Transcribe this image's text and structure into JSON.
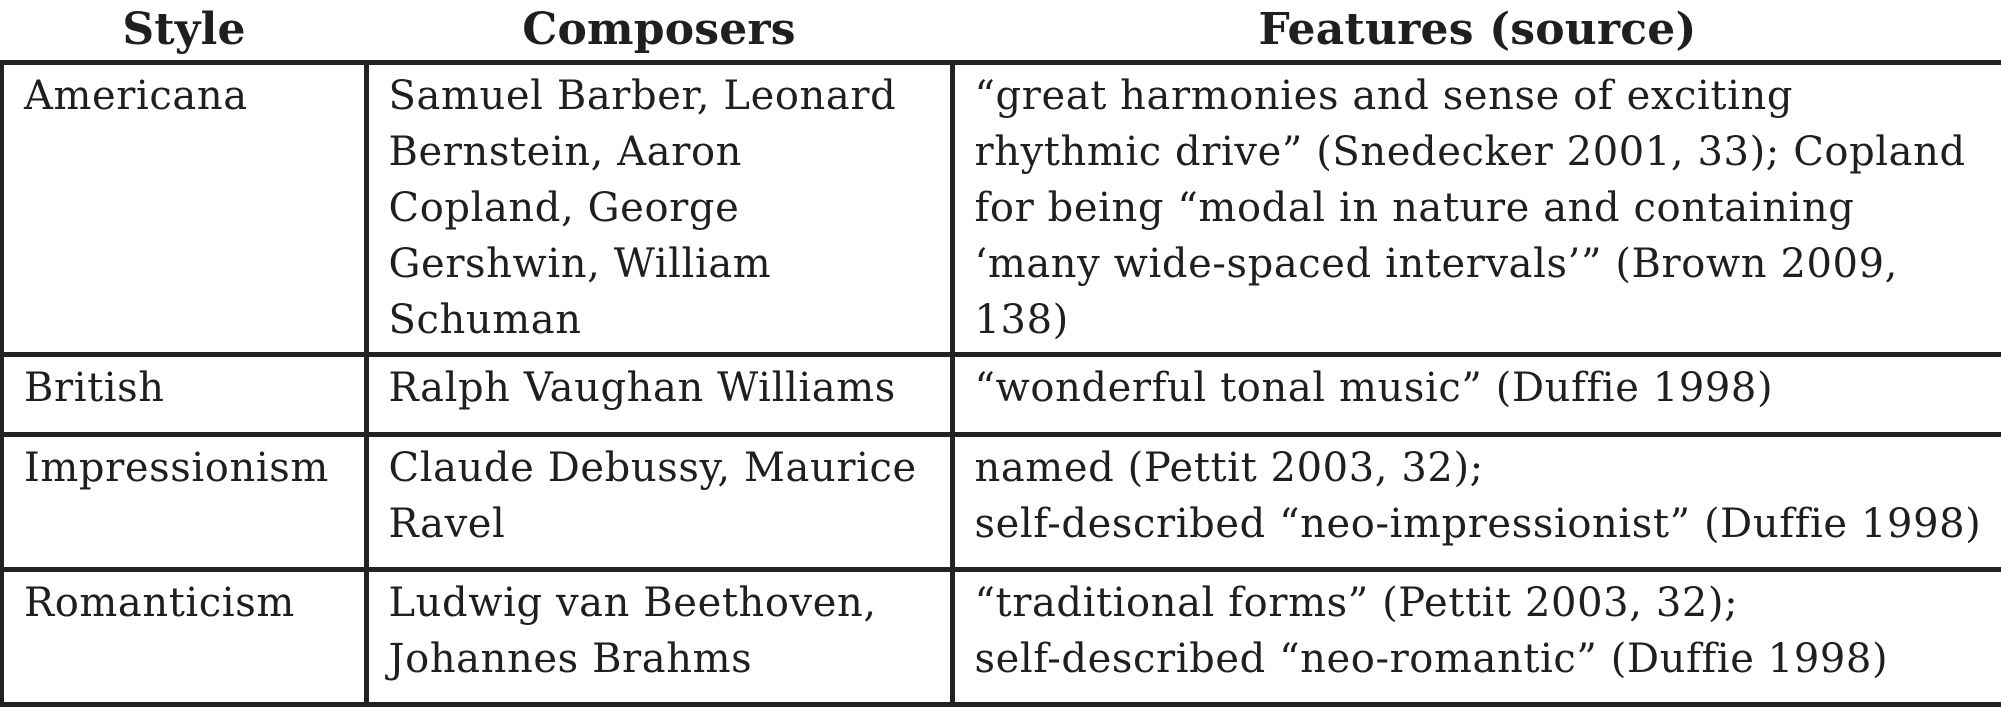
{
  "table": {
    "headers": {
      "style": "Style",
      "composers": "Composers",
      "features": "Features (source)"
    },
    "rows": [
      {
        "style": "Americana",
        "composers": "Samuel Barber, Leonard Bernstein, Aaron Copland, George Gershwin, William Schuman",
        "features": "“great harmonies and sense of exciting rhythmic drive” (Snedecker 2001, 33); Copland for being “modal in nature and containing ‘many wide-spaced intervals’” (Brown 2009, 138)"
      },
      {
        "style": "British",
        "composers": "Ralph Vaughan Williams",
        "features": "“wonderful tonal music” (Duffie 1998)"
      },
      {
        "style": "Impressionism",
        "composers": "Claude Debussy, Maurice Ravel",
        "features_lines": [
          "named (Pettit 2003, 32);",
          "self-described “neo-impressionist” (Duffie 1998)"
        ]
      },
      {
        "style": "Romanticism",
        "composers": "Ludwig van Beethoven, Johannes Brahms",
        "features_lines": [
          "“traditional forms” (Pettit 2003, 32);",
          "self-described “neo-romantic” (Duffie 1998)"
        ]
      }
    ]
  }
}
